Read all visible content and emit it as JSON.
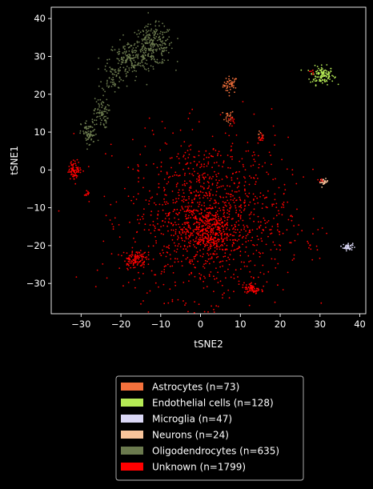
{
  "chart_data": {
    "type": "scatter",
    "title": "",
    "xlabel": "tSNE2",
    "ylabel": "tSNE1",
    "xlim": [
      -37.5,
      41.5
    ],
    "ylim": [
      -38,
      43
    ],
    "xticks": [
      -30,
      -20,
      -10,
      0,
      10,
      20,
      30,
      40
    ],
    "yticks": [
      -30,
      -20,
      -10,
      0,
      10,
      20,
      30,
      40
    ],
    "grid": false,
    "background": "#000000",
    "legend_position": "bottom-center, below plot",
    "series": [
      {
        "name": "Astrocytes (n=73)",
        "color": "#f4713c",
        "count": 73,
        "clusters": [
          {
            "cx": 7.5,
            "cy": 22.5,
            "sx": 0.9,
            "sy": 1.1,
            "n": 45
          },
          {
            "cx": 7.0,
            "cy": 14.0,
            "sx": 0.7,
            "sy": 0.9,
            "n": 20
          },
          {
            "cx": 15.0,
            "cy": 9.0,
            "sx": 0.4,
            "sy": 0.5,
            "n": 8
          }
        ]
      },
      {
        "name": "Endothelial cells (n=128)",
        "color": "#b5ea55",
        "count": 128,
        "clusters": [
          {
            "cx": 30.5,
            "cy": 25.0,
            "sx": 1.5,
            "sy": 1.2,
            "n": 128
          }
        ]
      },
      {
        "name": "Microglia (n=47)",
        "color": "#dad7f5",
        "count": 47,
        "clusters": [
          {
            "cx": 37.0,
            "cy": -20.3,
            "sx": 0.6,
            "sy": 0.5,
            "n": 47
          }
        ]
      },
      {
        "name": "Neurons (n=24)",
        "color": "#f7c49b",
        "count": 24,
        "clusters": [
          {
            "cx": 31.0,
            "cy": -3.2,
            "sx": 0.5,
            "sy": 0.4,
            "n": 24
          }
        ]
      },
      {
        "name": "Oligodendrocytes (n=635)",
        "color": "#6b7a4e",
        "count": 635,
        "clusters": [
          {
            "cx": -12.0,
            "cy": 33.0,
            "sx": 2.6,
            "sy": 2.6,
            "n": 260
          },
          {
            "cx": -18.0,
            "cy": 29.0,
            "sx": 2.6,
            "sy": 2.4,
            "n": 160
          },
          {
            "cx": -22.0,
            "cy": 24.5,
            "sx": 1.4,
            "sy": 2.0,
            "n": 60
          },
          {
            "cx": -25.0,
            "cy": 15.0,
            "sx": 0.9,
            "sy": 2.0,
            "n": 75
          },
          {
            "cx": -28.0,
            "cy": 9.5,
            "sx": 1.0,
            "sy": 1.8,
            "n": 80
          }
        ]
      },
      {
        "name": "Unknown (n=1799)",
        "color": "#ff0000",
        "count": 1799,
        "clusters": [
          {
            "cx": 2.0,
            "cy": -12.5,
            "sx": 10.0,
            "sy": 10.5,
            "n": 1200
          },
          {
            "cx": 1.5,
            "cy": -16.0,
            "sx": 3.0,
            "sy": 3.0,
            "n": 300
          },
          {
            "cx": -31.5,
            "cy": 0.0,
            "sx": 0.8,
            "sy": 1.2,
            "n": 80
          },
          {
            "cx": -28.5,
            "cy": -6.0,
            "sx": 0.4,
            "sy": 0.4,
            "n": 12
          },
          {
            "cx": -16.5,
            "cy": -23.5,
            "sx": 1.4,
            "sy": 1.2,
            "n": 110
          },
          {
            "cx": 13.0,
            "cy": -31.5,
            "sx": 1.0,
            "sy": 0.8,
            "n": 60
          },
          {
            "cx": 15.0,
            "cy": 8.5,
            "sx": 0.5,
            "sy": 0.6,
            "n": 12
          },
          {
            "cx": 27.5,
            "cy": -20.0,
            "sx": 0.3,
            "sy": 0.3,
            "n": 5
          },
          {
            "cx": 8.0,
            "cy": 13.0,
            "sx": 0.5,
            "sy": 0.8,
            "n": 10
          },
          {
            "cx": 28.0,
            "cy": 26.0,
            "sx": 0.4,
            "sy": 0.5,
            "n": 5
          },
          {
            "cx": 30.0,
            "cy": -3.0,
            "sx": 0.4,
            "sy": 0.3,
            "n": 5
          }
        ]
      }
    ]
  }
}
